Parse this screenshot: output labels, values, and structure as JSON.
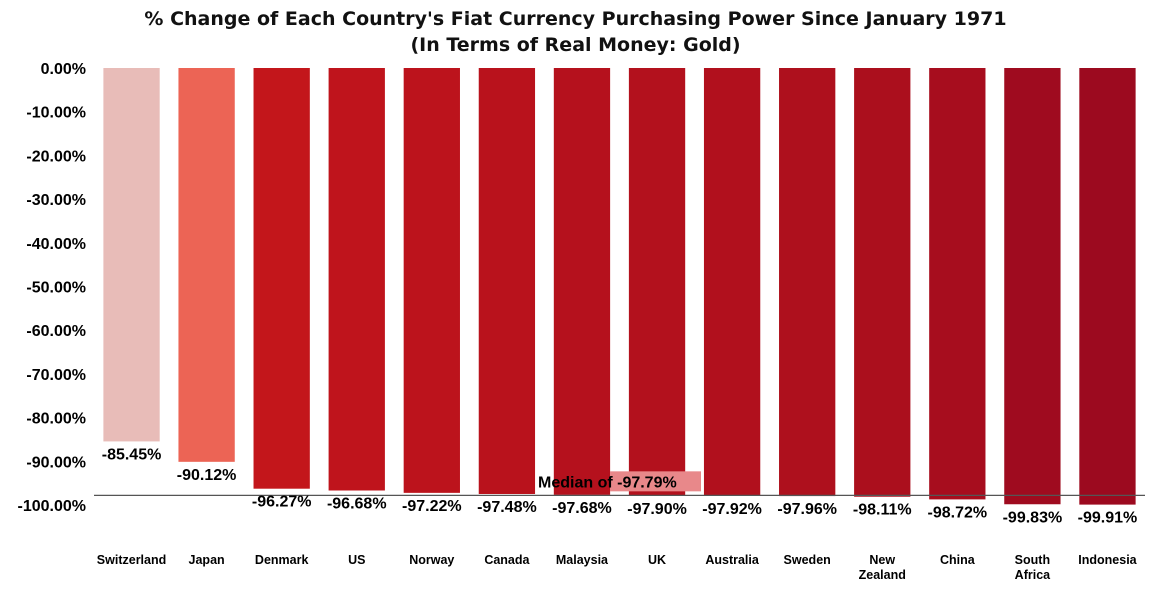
{
  "chart_data": {
    "type": "bar",
    "title": "% Change of Each Country's Fiat Currency Purchasing Power Since January 1971",
    "subtitle": "(In Terms of Real Money: Gold)",
    "categories": [
      [
        "Switzerland"
      ],
      [
        "Japan"
      ],
      [
        "Denmark"
      ],
      [
        "US"
      ],
      [
        "Norway"
      ],
      [
        "Canada"
      ],
      [
        "Malaysia"
      ],
      [
        "UK"
      ],
      [
        "Australia"
      ],
      [
        "Sweden"
      ],
      [
        "New",
        "Zealand"
      ],
      [
        "China"
      ],
      [
        "South",
        "Africa"
      ],
      [
        "Indonesia"
      ]
    ],
    "values": [
      -85.45,
      -90.12,
      -96.27,
      -96.68,
      -97.22,
      -97.48,
      -97.68,
      -97.9,
      -97.92,
      -97.96,
      -98.11,
      -98.72,
      -99.83,
      -99.91
    ],
    "data_labels": [
      "-85.45%",
      "-90.12%",
      "-96.27%",
      "-96.68%",
      "-97.22%",
      "-97.48%",
      "-97.68%",
      "-97.90%",
      "-97.92%",
      "-97.96%",
      "-98.11%",
      "-98.72%",
      "-99.83%",
      "-99.91%"
    ],
    "bar_colors": [
      "#e8bcb8",
      "#ec6455",
      "#c3161b",
      "#bf141c",
      "#bc131c",
      "#b9121c",
      "#b5111d",
      "#b3111d",
      "#b1101d",
      "#ae101d",
      "#ab0f1d",
      "#a70d1e",
      "#9f0b1f",
      "#9c0a1f"
    ],
    "ylim": [
      -100,
      0
    ],
    "yticks": [
      0,
      -10,
      -20,
      -30,
      -40,
      -50,
      -60,
      -70,
      -80,
      -90,
      -100
    ],
    "ytick_labels": [
      "0.00%",
      "-10.00%",
      "-20.00%",
      "-30.00%",
      "-40.00%",
      "-50.00%",
      "-60.00%",
      "-70.00%",
      "-80.00%",
      "-90.00%",
      "-100.00%"
    ],
    "median": {
      "value": -97.79,
      "label_prefix": "Median of ",
      "label_value": "-97.79%",
      "line_color": "#555555",
      "highlight_color": "#e8888a"
    },
    "grid": false,
    "legend": "none"
  }
}
